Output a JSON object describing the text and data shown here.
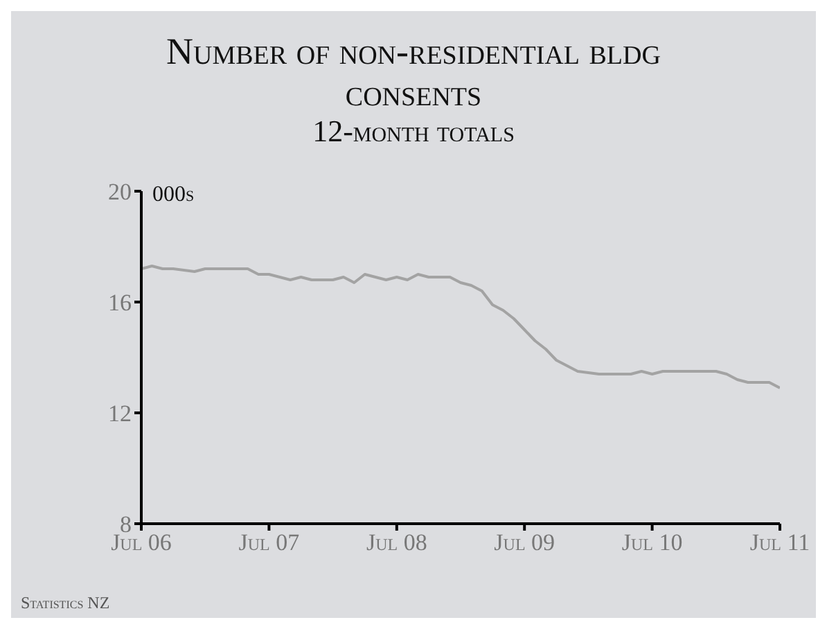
{
  "chart_data": {
    "type": "line",
    "title": "Number of non-residential bldg consents",
    "subtitle": "12-month totals",
    "ylabel": "000s",
    "annotations": [
      "Statistics NZ"
    ],
    "x": [
      "2006-07",
      "2006-08",
      "2006-09",
      "2006-10",
      "2006-12",
      "2007-01",
      "2007-03",
      "2007-04",
      "2007-05",
      "2007-06",
      "2007-07",
      "2007-09",
      "2007-10",
      "2007-11",
      "2008-01",
      "2008-02",
      "2008-03",
      "2008-04",
      "2008-06",
      "2008-07",
      "2008-08",
      "2008-09",
      "2008-10",
      "2008-12",
      "2009-01",
      "2009-02",
      "2009-03",
      "2009-04",
      "2009-05",
      "2009-06",
      "2009-07",
      "2009-08",
      "2009-09",
      "2009-10",
      "2009-11",
      "2009-12",
      "2010-02",
      "2010-05",
      "2010-06",
      "2010-07",
      "2010-08",
      "2010-11",
      "2010-12",
      "2011-01",
      "2011-02",
      "2011-03",
      "2011-04",
      "2011-05",
      "2011-06",
      "2011-07"
    ],
    "series": [
      {
        "color": "#a3a3a3",
        "values": [
          17.2,
          17.3,
          17.2,
          17.2,
          17.1,
          17.2,
          17.2,
          17.2,
          17.2,
          17.0,
          17.0,
          16.8,
          16.9,
          16.8,
          16.8,
          16.9,
          16.7,
          17.0,
          16.8,
          16.9,
          16.8,
          17.0,
          16.9,
          16.9,
          16.7,
          16.6,
          16.4,
          15.9,
          15.7,
          15.4,
          15.0,
          14.6,
          14.3,
          13.9,
          13.7,
          13.5,
          13.4,
          13.4,
          13.5,
          13.4,
          13.5,
          13.5,
          13.5,
          13.5,
          13.4,
          13.2,
          13.1,
          13.1,
          13.1,
          12.9
        ]
      }
    ],
    "xlim": [
      "2006-07",
      "2011-07"
    ],
    "xticks": [
      {
        "value": "2006-07",
        "label": "Jul 06"
      },
      {
        "value": "2007-07",
        "label": "Jul 07"
      },
      {
        "value": "2008-07",
        "label": "Jul 08"
      },
      {
        "value": "2009-07",
        "label": "Jul 09"
      },
      {
        "value": "2010-07",
        "label": "Jul 10"
      },
      {
        "value": "2011-07",
        "label": "Jul 11"
      }
    ],
    "ylim": [
      8,
      20
    ],
    "yticks": [
      8,
      12,
      16,
      20
    ],
    "grid": false,
    "legend": false,
    "marker": "none",
    "line_style": "solid"
  }
}
